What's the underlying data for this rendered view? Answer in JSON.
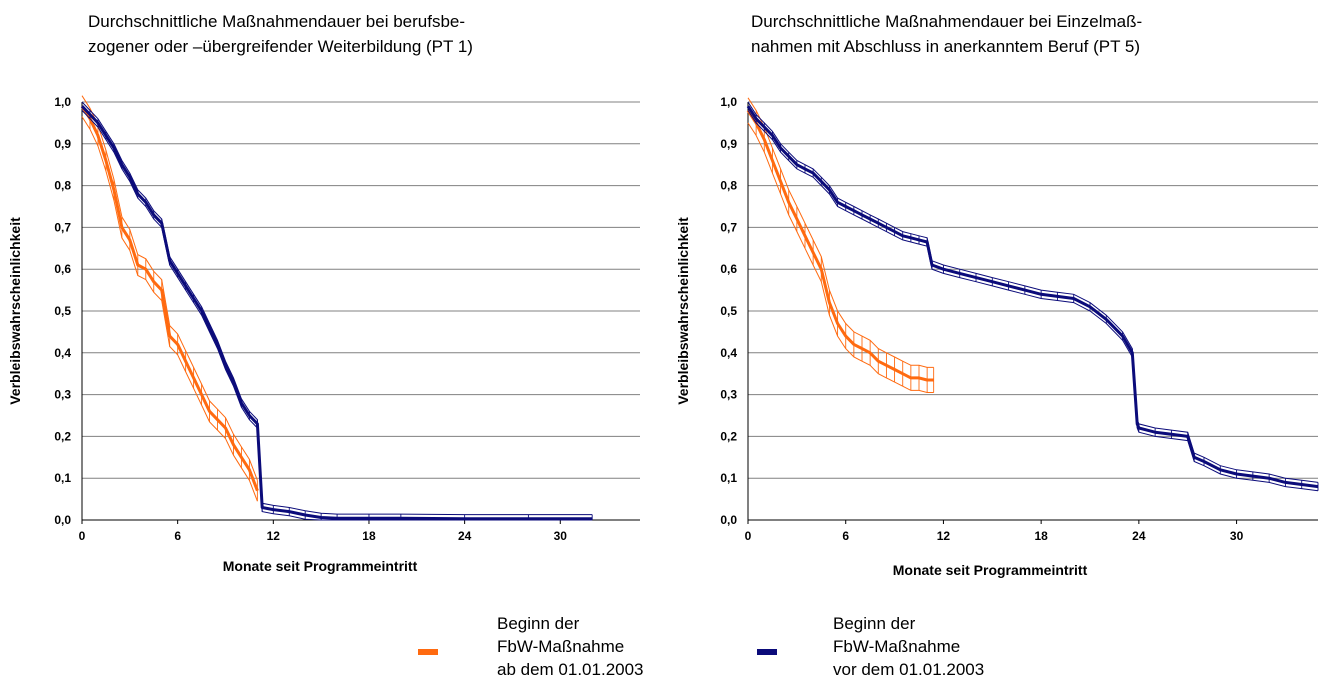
{
  "colors": {
    "orange": "#FF6A10",
    "navy": "#0B0B7A",
    "grid": "#808080",
    "axis": "#000000"
  },
  "legend": {
    "items": [
      {
        "line1": "Beginn der",
        "line2": "FbW-Maßnahme",
        "line3": "ab dem 01.01.2003",
        "color": "#FF6A10"
      },
      {
        "line1": "Beginn der",
        "line2": "FbW-Maßnahme",
        "line3": "vor dem 01.01.2003",
        "color": "#0B0B7A"
      }
    ]
  },
  "chart_data": [
    {
      "type": "line",
      "title_line1": "Durchschnittliche Maßnahmendauer bei berufsbe-",
      "title_line2": "zogener oder –übergreifender Weiterbildung (PT 1)",
      "xlabel": "Monate seit Programmeintritt",
      "ylabel": "Verbleibswahrscheinlichkeit",
      "xlim": [
        0,
        35
      ],
      "ylim": [
        0,
        1
      ],
      "x_ticks": [
        "0",
        "6",
        "12",
        "18",
        "24",
        "30"
      ],
      "y_ticks": [
        "0,0",
        "0,1",
        "0,2",
        "0,3",
        "0,4",
        "0,5",
        "0,6",
        "0,7",
        "0,8",
        "0,9",
        "1,0"
      ],
      "grid": true,
      "series": [
        {
          "color": "#FF6A10",
          "ci": 0.025,
          "points": [
            [
              0,
              0.99
            ],
            [
              0.5,
              0.96
            ],
            [
              1,
              0.92
            ],
            [
              1.5,
              0.86
            ],
            [
              2,
              0.79
            ],
            [
              2.5,
              0.7
            ],
            [
              3,
              0.67
            ],
            [
              3.5,
              0.61
            ],
            [
              4,
              0.6
            ],
            [
              4.5,
              0.57
            ],
            [
              5,
              0.55
            ],
            [
              5.5,
              0.44
            ],
            [
              6,
              0.42
            ],
            [
              6.5,
              0.38
            ],
            [
              7,
              0.34
            ],
            [
              7.5,
              0.3
            ],
            [
              8,
              0.26
            ],
            [
              8.5,
              0.24
            ],
            [
              9,
              0.22
            ],
            [
              9.5,
              0.18
            ],
            [
              10,
              0.15
            ],
            [
              10.5,
              0.12
            ],
            [
              11,
              0.07
            ]
          ]
        },
        {
          "color": "#0B0B7A",
          "ci": 0.01,
          "points": [
            [
              0,
              0.99
            ],
            [
              0.5,
              0.97
            ],
            [
              1,
              0.95
            ],
            [
              1.5,
              0.92
            ],
            [
              2,
              0.89
            ],
            [
              2.5,
              0.85
            ],
            [
              3,
              0.82
            ],
            [
              3.5,
              0.78
            ],
            [
              4,
              0.76
            ],
            [
              4.5,
              0.73
            ],
            [
              5,
              0.71
            ],
            [
              5.5,
              0.62
            ],
            [
              6,
              0.59
            ],
            [
              6.5,
              0.56
            ],
            [
              7,
              0.53
            ],
            [
              7.5,
              0.5
            ],
            [
              8,
              0.46
            ],
            [
              8.5,
              0.42
            ],
            [
              9,
              0.37
            ],
            [
              9.5,
              0.33
            ],
            [
              10,
              0.28
            ],
            [
              10.5,
              0.25
            ],
            [
              11,
              0.23
            ],
            [
              11.3,
              0.03
            ],
            [
              12,
              0.025
            ],
            [
              13,
              0.02
            ],
            [
              14,
              0.012
            ],
            [
              15,
              0.006
            ],
            [
              16,
              0.004
            ],
            [
              18,
              0.004
            ],
            [
              20,
              0.004
            ],
            [
              24,
              0.003
            ],
            [
              28,
              0.003
            ],
            [
              32,
              0.003
            ]
          ]
        }
      ]
    },
    {
      "type": "line",
      "title_line1": "Durchschnittliche Maßnahmendauer bei Einzelmaß-",
      "title_line2": "nahmen mit Abschluss in anerkanntem Beruf (PT 5)",
      "xlabel": "Monate seit Programmeintritt",
      "ylabel": "Verbleibswahrscheinlichkeit",
      "xlim": [
        0,
        35
      ],
      "ylim": [
        0,
        1
      ],
      "x_ticks": [
        "0",
        "6",
        "12",
        "18",
        "24",
        "30"
      ],
      "y_ticks": [
        "0,0",
        "0,1",
        "0,2",
        "0,3",
        "0,4",
        "0,5",
        "0,6",
        "0,7",
        "0,8",
        "0,9",
        "1,0"
      ],
      "grid": true,
      "series": [
        {
          "color": "#FF6A10",
          "ci": 0.03,
          "points": [
            [
              0,
              0.98
            ],
            [
              0.5,
              0.95
            ],
            [
              1,
              0.91
            ],
            [
              1.5,
              0.86
            ],
            [
              2,
              0.81
            ],
            [
              2.5,
              0.76
            ],
            [
              3,
              0.72
            ],
            [
              3.5,
              0.68
            ],
            [
              4,
              0.64
            ],
            [
              4.5,
              0.6
            ],
            [
              5,
              0.52
            ],
            [
              5.5,
              0.47
            ],
            [
              6,
              0.44
            ],
            [
              6.5,
              0.42
            ],
            [
              7,
              0.41
            ],
            [
              7.5,
              0.4
            ],
            [
              8,
              0.38
            ],
            [
              8.5,
              0.37
            ],
            [
              9,
              0.36
            ],
            [
              9.5,
              0.35
            ],
            [
              10,
              0.34
            ],
            [
              10.5,
              0.34
            ],
            [
              11,
              0.335
            ],
            [
              11.4,
              0.335
            ]
          ]
        },
        {
          "color": "#0B0B7A",
          "ci": 0.01,
          "points": [
            [
              0,
              0.99
            ],
            [
              0.5,
              0.96
            ],
            [
              1,
              0.94
            ],
            [
              1.5,
              0.92
            ],
            [
              2,
              0.89
            ],
            [
              2.5,
              0.87
            ],
            [
              3,
              0.85
            ],
            [
              3.5,
              0.84
            ],
            [
              4,
              0.83
            ],
            [
              4.5,
              0.81
            ],
            [
              5,
              0.79
            ],
            [
              5.5,
              0.76
            ],
            [
              6,
              0.75
            ],
            [
              6.5,
              0.74
            ],
            [
              7,
              0.73
            ],
            [
              7.5,
              0.72
            ],
            [
              8,
              0.71
            ],
            [
              8.5,
              0.7
            ],
            [
              9,
              0.69
            ],
            [
              9.5,
              0.68
            ],
            [
              10,
              0.675
            ],
            [
              10.5,
              0.67
            ],
            [
              11,
              0.665
            ],
            [
              11.3,
              0.61
            ],
            [
              12,
              0.6
            ],
            [
              13,
              0.59
            ],
            [
              14,
              0.58
            ],
            [
              15,
              0.57
            ],
            [
              16,
              0.56
            ],
            [
              17,
              0.55
            ],
            [
              18,
              0.54
            ],
            [
              19,
              0.535
            ],
            [
              20,
              0.53
            ],
            [
              21,
              0.51
            ],
            [
              22,
              0.48
            ],
            [
              23,
              0.44
            ],
            [
              23.6,
              0.4
            ],
            [
              23.9,
              0.23
            ],
            [
              24,
              0.22
            ],
            [
              25,
              0.21
            ],
            [
              26,
              0.205
            ],
            [
              27,
              0.2
            ],
            [
              27.4,
              0.15
            ],
            [
              28,
              0.14
            ],
            [
              29,
              0.12
            ],
            [
              30,
              0.11
            ],
            [
              31,
              0.105
            ],
            [
              32,
              0.1
            ],
            [
              33,
              0.09
            ],
            [
              34,
              0.085
            ],
            [
              35,
              0.08
            ]
          ]
        }
      ]
    }
  ]
}
